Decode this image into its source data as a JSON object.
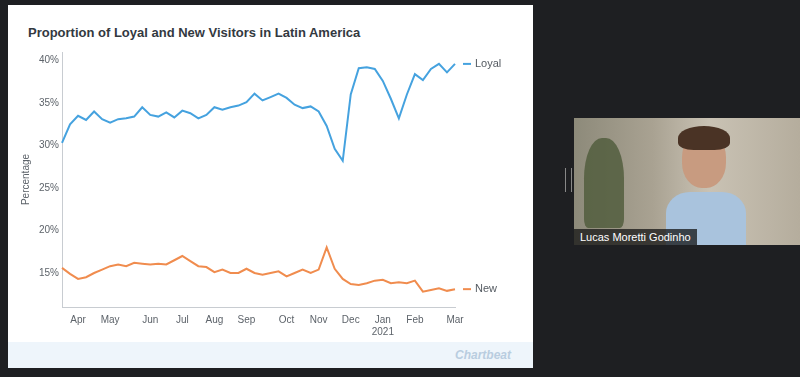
{
  "chart_data": {
    "type": "line",
    "title": "Proportion of Loyal and New Visitors in Latin America",
    "y_label": "Percentage",
    "categories": [
      null,
      null,
      "Apr",
      null,
      null,
      null,
      "May",
      null,
      null,
      null,
      null,
      "Jun",
      null,
      null,
      null,
      "Jul",
      null,
      null,
      null,
      "Aug",
      null,
      null,
      null,
      "Sep",
      null,
      null,
      null,
      null,
      "Oct",
      null,
      null,
      null,
      "Nov",
      null,
      null,
      null,
      "Dec",
      null,
      null,
      null,
      "Jan 2021",
      null,
      null,
      null,
      "Feb",
      null,
      null,
      null,
      null,
      "Mar"
    ],
    "series": [
      {
        "name": "Loyal",
        "color": "#45a2df",
        "values": [
          30.3,
          32.5,
          33.5,
          33.0,
          34.0,
          33.1,
          32.7,
          33.1,
          33.2,
          33.4,
          34.5,
          33.6,
          33.4,
          33.9,
          33.3,
          34.1,
          33.8,
          33.2,
          33.6,
          34.5,
          34.2,
          34.5,
          34.7,
          35.1,
          36.1,
          35.3,
          35.7,
          36.1,
          35.6,
          34.8,
          34.4,
          34.6,
          34.0,
          32.3,
          29.6,
          28.2,
          36.0,
          39.1,
          39.2,
          39.0,
          37.6,
          35.5,
          33.2,
          36.0,
          38.4,
          37.7,
          39.0,
          39.6,
          38.6,
          39.6
        ]
      },
      {
        "name": "New",
        "color": "#f08c4e",
        "values": [
          15.6,
          14.9,
          14.3,
          14.5,
          15.0,
          15.4,
          15.8,
          16.0,
          15.8,
          16.2,
          16.1,
          16.0,
          16.1,
          16.0,
          16.5,
          17.0,
          16.4,
          15.8,
          15.7,
          15.1,
          15.4,
          15.0,
          15.0,
          15.5,
          15.0,
          14.8,
          15.0,
          15.2,
          14.6,
          15.0,
          15.4,
          15.0,
          15.4,
          18.0,
          15.5,
          14.3,
          13.7,
          13.6,
          13.8,
          14.1,
          14.2,
          13.8,
          13.9,
          13.8,
          14.1,
          12.8,
          13.0,
          13.2,
          12.9,
          13.1
        ]
      }
    ],
    "ylim": [
      11,
      41
    ],
    "yticks": [
      {
        "value": 15,
        "label": "15%"
      },
      {
        "value": 20,
        "label": "20%"
      },
      {
        "value": 25,
        "label": "25%"
      },
      {
        "value": 30,
        "label": "30%"
      },
      {
        "value": 35,
        "label": "35%"
      },
      {
        "value": 40,
        "label": "40%"
      }
    ],
    "grid": false
  },
  "slide": {
    "footer_logo": "Chartbeat"
  },
  "video": {
    "name": "Lucas Moretti Godinho"
  }
}
